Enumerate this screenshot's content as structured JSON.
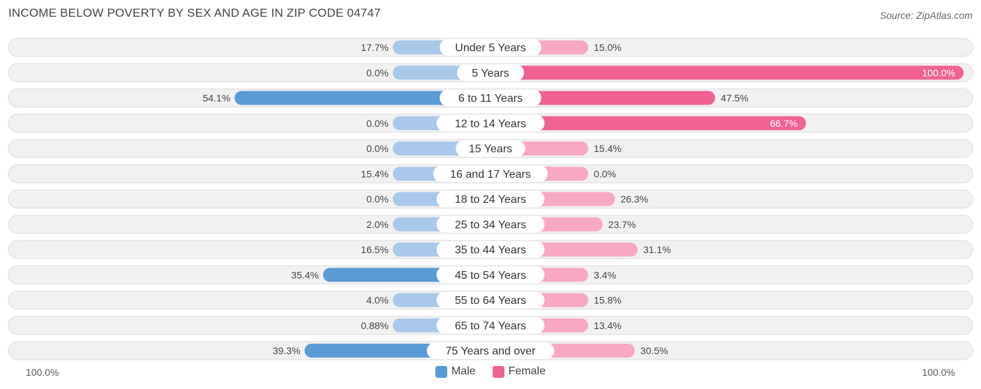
{
  "header": {
    "title": "INCOME BELOW POVERTY BY SEX AND AGE IN ZIP CODE 04747",
    "source": "Source: ZipAtlas.com"
  },
  "axis": {
    "left_label": "100.0%",
    "right_label": "100.0%"
  },
  "legend": {
    "male_label": "Male",
    "female_label": "Female"
  },
  "colors": {
    "male_strong": "#5b9bd5",
    "male_light": "#a9c8ea",
    "female_strong": "#f06292",
    "female_light": "#f7a8c2",
    "row_bg": "#efefef"
  },
  "chart_data": {
    "type": "bar",
    "orientation": "horizontal-diverging",
    "title": "INCOME BELOW POVERTY BY SEX AND AGE IN ZIP CODE 04747",
    "categories": [
      "Under 5 Years",
      "5 Years",
      "6 to 11 Years",
      "12 to 14 Years",
      "15 Years",
      "16 and 17 Years",
      "18 to 24 Years",
      "25 to 34 Years",
      "35 to 44 Years",
      "45 to 54 Years",
      "55 to 64 Years",
      "65 to 74 Years",
      "75 Years and over"
    ],
    "series": [
      {
        "name": "Male",
        "values": [
          17.7,
          0.0,
          54.1,
          0.0,
          0.0,
          15.4,
          0.0,
          2.0,
          16.5,
          35.4,
          4.0,
          0.88,
          39.3
        ],
        "labels": [
          "17.7%",
          "0.0%",
          "54.1%",
          "0.0%",
          "0.0%",
          "15.4%",
          "0.0%",
          "2.0%",
          "16.5%",
          "35.4%",
          "4.0%",
          "0.88%",
          "39.3%"
        ]
      },
      {
        "name": "Female",
        "values": [
          15.0,
          100.0,
          47.5,
          66.7,
          15.4,
          0.0,
          26.3,
          23.7,
          31.1,
          3.4,
          15.8,
          13.4,
          30.5
        ],
        "labels": [
          "15.0%",
          "100.0%",
          "47.5%",
          "66.7%",
          "15.4%",
          "0.0%",
          "26.3%",
          "23.7%",
          "31.1%",
          "3.4%",
          "15.8%",
          "13.4%",
          "30.5%"
        ]
      }
    ],
    "xlim": [
      -100,
      100
    ],
    "legend_position": "bottom-center"
  }
}
